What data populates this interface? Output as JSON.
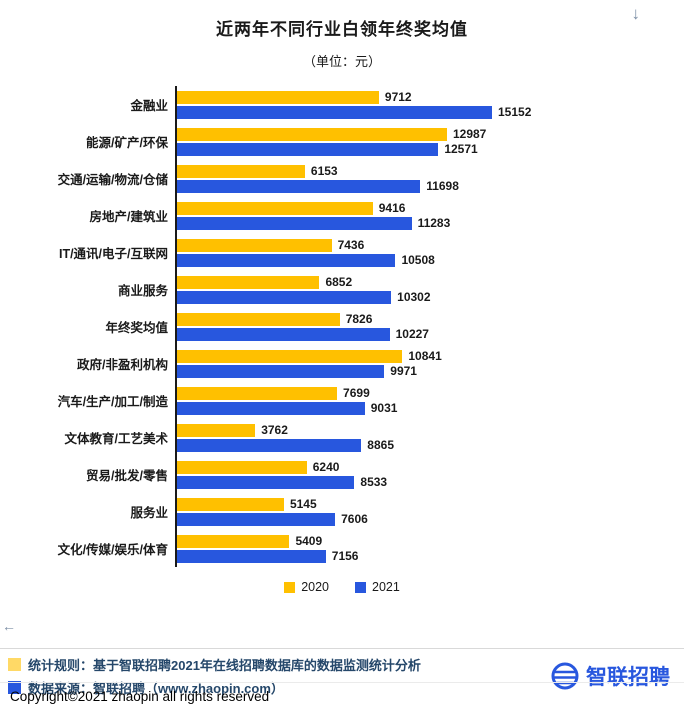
{
  "page": {
    "title": "近两年不同行业白领年终奖均值",
    "subtitle": "（单位：元）"
  },
  "icons": {
    "scroll_down": "↓",
    "scroll_left": "←"
  },
  "chart_data": {
    "type": "bar",
    "orientation": "horizontal",
    "title": "近两年不同行业白领年终奖均值",
    "subtitle": "（单位：元）",
    "unit": "元",
    "categories": [
      "金融业",
      "能源/矿产/环保",
      "交通/运输/物流/仓储",
      "房地产/建筑业",
      "IT/通讯/电子/互联网",
      "商业服务",
      "年终奖均值",
      "政府/非盈利机构",
      "汽车/生产/加工/制造",
      "文体教育/工艺美术",
      "贸易/批发/零售",
      "服务业",
      "文化/传媒/娱乐/体育"
    ],
    "series": [
      {
        "name": "2020",
        "color": "#FFC000",
        "values": [
          9712,
          12987,
          6153,
          9416,
          7436,
          6852,
          7826,
          10841,
          7699,
          3762,
          6240,
          5145,
          5409
        ]
      },
      {
        "name": "2021",
        "color": "#2857DE",
        "values": [
          15152,
          12571,
          11698,
          11283,
          10508,
          10302,
          10227,
          9971,
          9031,
          8865,
          8533,
          7606,
          7156
        ]
      }
    ],
    "xlim": [
      0,
      15152
    ],
    "grid": false,
    "value_labels": true,
    "legend_position": "bottom"
  },
  "footer": {
    "note1": {
      "swatch_color": "#FFD966",
      "text": "统计规则：基于智联招聘2021年在线招聘数据库的数据监测统计分析"
    },
    "note2": {
      "swatch_color": "#2857DE",
      "text": "数据来源：智联招聘（www.zhaopin.com）"
    },
    "logo_text": "智联招聘",
    "logo_color": "#2857DE",
    "copyright": "Copyright©2021 zhaopin all rights reserved"
  }
}
